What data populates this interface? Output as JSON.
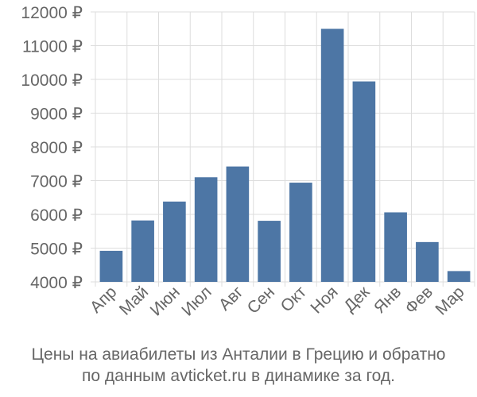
{
  "chart_data": {
    "type": "bar",
    "categories": [
      "Апр",
      "Май",
      "Июн",
      "Июл",
      "Авг",
      "Сен",
      "Окт",
      "Ноя",
      "Дек",
      "Янв",
      "Фев",
      "Мар"
    ],
    "values": [
      4920,
      5820,
      6380,
      7100,
      7420,
      5810,
      6940,
      11500,
      9940,
      6060,
      5180,
      4320
    ],
    "ylim": [
      4000,
      12000
    ],
    "yticks": [
      "4000 ₽",
      "5000 ₽",
      "6000 ₽",
      "7000 ₽",
      "8000 ₽",
      "9000 ₽",
      "10000 ₽",
      "11000 ₽",
      "12000 ₽"
    ],
    "bar_color": "#4d76a5",
    "grid": true,
    "caption_line1": "Цены на авиабилеты из Анталии в Грецию и обратно",
    "caption_line2": "по данным avticket.ru в динамике за год."
  }
}
